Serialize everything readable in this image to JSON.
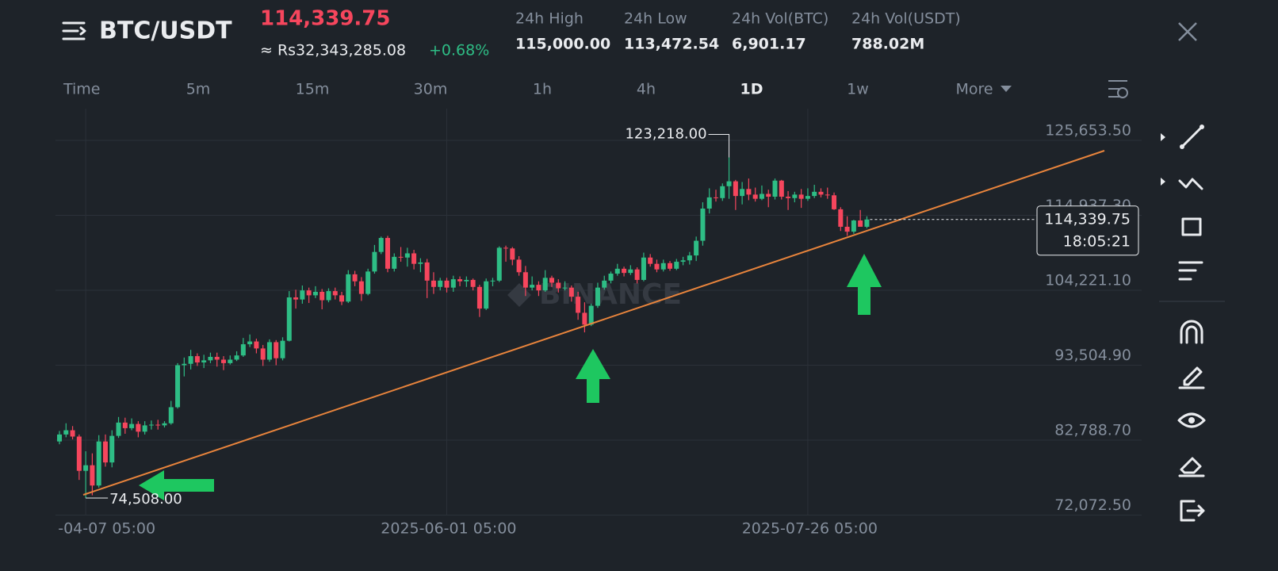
{
  "header": {
    "symbol": "BTC/USDT",
    "price": "114,339.75",
    "fiat": "≈ Rs32,343,285.08",
    "change": "+0.68%",
    "stats": [
      {
        "label": "24h High",
        "value": "115,000.00"
      },
      {
        "label": "24h Low",
        "value": "113,472.54"
      },
      {
        "label": "24h Vol(BTC)",
        "value": "6,901.17"
      },
      {
        "label": "24h Vol(USDT)",
        "value": "788.02M"
      }
    ]
  },
  "intervals": [
    "Time",
    "5m",
    "15m",
    "30m",
    "1h",
    "4h",
    "1D",
    "1w",
    "More"
  ],
  "active_interval": "1D",
  "chart_data": {
    "type": "candlestick",
    "watermark": "BINANCE",
    "up_color": "#2ebd85",
    "down_color": "#f6465d",
    "ylim": [
      72072.5,
      125653.5
    ],
    "yticks": [
      {
        "value": 72072.5,
        "label": "72,072.50"
      },
      {
        "value": 82788.7,
        "label": "82,788.70"
      },
      {
        "value": 93504.9,
        "label": "93,504.90"
      },
      {
        "value": 104221.1,
        "label": "104,221.10"
      },
      {
        "value": 114937.3,
        "label": "114,937.30"
      },
      {
        "value": 125653.5,
        "label": "125,653.50"
      }
    ],
    "xticks": [
      {
        "value": 4,
        "label": "-04-07 05:00"
      },
      {
        "value": 59,
        "label": "2025-06-01 05:00"
      },
      {
        "value": 114,
        "label": "2025-07-26 05:00"
      }
    ],
    "high_marker": {
      "index": 102,
      "value": 123218,
      "label": "123,218.00"
    },
    "low_marker": {
      "index": 4,
      "value": 74508,
      "label": "74,508.00"
    },
    "current_price": {
      "value": 114339.75,
      "label": "114,339.75",
      "countdown": "18:05:21"
    },
    "candles": [
      [
        82600,
        84100,
        82200,
        83600
      ],
      [
        83600,
        85200,
        83200,
        84200
      ],
      [
        84200,
        84800,
        82900,
        83300
      ],
      [
        83300,
        83600,
        77100,
        78400
      ],
      [
        78400,
        81200,
        74508,
        79200
      ],
      [
        79200,
        80900,
        74900,
        76300
      ],
      [
        76300,
        83500,
        76000,
        82600
      ],
      [
        82600,
        83600,
        79000,
        79600
      ],
      [
        79600,
        84200,
        78900,
        83400
      ],
      [
        83400,
        86100,
        83100,
        85300
      ],
      [
        85300,
        86000,
        83700,
        84500
      ],
      [
        84500,
        85900,
        84200,
        85100
      ],
      [
        85100,
        85500,
        83200,
        84000
      ],
      [
        84000,
        85500,
        83600,
        84900
      ],
      [
        84900,
        85600,
        84300,
        85000
      ],
      [
        85000,
        85700,
        84300,
        84900
      ],
      [
        84900,
        85500,
        84600,
        85200
      ],
      [
        85200,
        88400,
        85000,
        87500
      ],
      [
        87500,
        93800,
        87300,
        93500
      ],
      [
        93500,
        94600,
        91900,
        93700
      ],
      [
        93700,
        95700,
        92900,
        94800
      ],
      [
        94800,
        95200,
        93400,
        93900
      ],
      [
        93900,
        95000,
        93100,
        94200
      ],
      [
        94200,
        95300,
        93800,
        94700
      ],
      [
        94700,
        95300,
        93300,
        94300
      ],
      [
        94300,
        94800,
        92800,
        93800
      ],
      [
        93800,
        94900,
        93600,
        94300
      ],
      [
        94300,
        95500,
        94100,
        94900
      ],
      [
        94900,
        97400,
        94700,
        96500
      ],
      [
        96500,
        97900,
        96100,
        96900
      ],
      [
        96900,
        97300,
        95200,
        95900
      ],
      [
        95900,
        96400,
        93400,
        94300
      ],
      [
        94300,
        97200,
        94000,
        96800
      ],
      [
        96800,
        97100,
        93500,
        94500
      ],
      [
        94500,
        97500,
        94200,
        97000
      ],
      [
        97000,
        104100,
        96900,
        103200
      ],
      [
        103200,
        104300,
        101600,
        102900
      ],
      [
        102900,
        104900,
        102300,
        104200
      ],
      [
        104200,
        104600,
        102400,
        103500
      ],
      [
        103500,
        104800,
        103100,
        104000
      ],
      [
        104000,
        104400,
        101500,
        102800
      ],
      [
        102800,
        104500,
        102500,
        104100
      ],
      [
        104100,
        104600,
        102900,
        103500
      ],
      [
        103500,
        104000,
        102100,
        102600
      ],
      [
        102600,
        107100,
        102400,
        106500
      ],
      [
        106500,
        107000,
        104800,
        105500
      ],
      [
        105500,
        106100,
        102700,
        103700
      ],
      [
        103700,
        107300,
        103500,
        106900
      ],
      [
        106900,
        110700,
        106600,
        109700
      ],
      [
        109700,
        111900,
        109400,
        111700
      ],
      [
        111700,
        112000,
        106800,
        107300
      ],
      [
        107300,
        109500,
        106900,
        109000
      ],
      [
        109000,
        110400,
        108300,
        108900
      ],
      [
        108900,
        110300,
        107600,
        109500
      ],
      [
        109500,
        110000,
        107200,
        108000
      ],
      [
        108000,
        108800,
        106800,
        108200
      ],
      [
        108200,
        108700,
        103100,
        105600
      ],
      [
        105600,
        106800,
        103700,
        104700
      ],
      [
        104700,
        106000,
        104200,
        105600
      ],
      [
        105600,
        106000,
        103900,
        104600
      ],
      [
        104600,
        106300,
        104000,
        105800
      ],
      [
        105800,
        106200,
        104800,
        105500
      ],
      [
        105500,
        106200,
        104700,
        105700
      ],
      [
        105700,
        105900,
        104200,
        104700
      ],
      [
        104700,
        105000,
        100400,
        101600
      ],
      [
        101600,
        105900,
        101400,
        105500
      ],
      [
        105500,
        106000,
        104800,
        105600
      ],
      [
        105600,
        110500,
        105400,
        110300
      ],
      [
        110300,
        110600,
        108300,
        110200
      ],
      [
        110200,
        110400,
        107800,
        108600
      ],
      [
        108600,
        109100,
        106300,
        106800
      ],
      [
        106800,
        107700,
        103400,
        104600
      ],
      [
        104600,
        106200,
        104200,
        105000
      ],
      [
        105000,
        105500,
        103400,
        104200
      ],
      [
        104200,
        107100,
        104000,
        106000
      ],
      [
        106000,
        106300,
        104700,
        105300
      ],
      [
        105300,
        105800,
        103900,
        104500
      ],
      [
        104500,
        105500,
        104200,
        104600
      ],
      [
        104600,
        104900,
        102600,
        103300
      ],
      [
        103300,
        104000,
        100000,
        101000
      ],
      [
        101000,
        102500,
        98200,
        99300
      ],
      [
        99300,
        102300,
        99100,
        102000
      ],
      [
        102000,
        105300,
        101700,
        104600
      ],
      [
        104600,
        106300,
        104300,
        105600
      ],
      [
        105600,
        106900,
        105200,
        106600
      ],
      [
        106600,
        108000,
        106300,
        107300
      ],
      [
        107300,
        107600,
        106200,
        106700
      ],
      [
        106700,
        107800,
        106400,
        107200
      ],
      [
        107200,
        107500,
        105200,
        105700
      ],
      [
        105700,
        109600,
        105500,
        108900
      ],
      [
        108900,
        109400,
        107600,
        108000
      ],
      [
        108000,
        108600,
        106800,
        107200
      ],
      [
        107200,
        108600,
        106900,
        108100
      ],
      [
        108100,
        108400,
        107000,
        107300
      ],
      [
        107300,
        108700,
        107100,
        108300
      ],
      [
        108300,
        109000,
        107800,
        108500
      ],
      [
        108500,
        109700,
        107900,
        109200
      ],
      [
        109200,
        111900,
        108400,
        111300
      ],
      [
        111300,
        116800,
        110600,
        115900
      ],
      [
        115900,
        118800,
        115200,
        117500
      ],
      [
        117500,
        118600,
        116900,
        117400
      ],
      [
        117400,
        119500,
        117000,
        119100
      ],
      [
        119100,
        123218,
        117300,
        119800
      ],
      [
        119800,
        120000,
        115700,
        117700
      ],
      [
        117700,
        119700,
        116500,
        118700
      ],
      [
        118700,
        120200,
        117100,
        117900
      ],
      [
        117900,
        118900,
        116900,
        117300
      ],
      [
        117300,
        119200,
        117100,
        118000
      ],
      [
        118000,
        118600,
        116100,
        117600
      ],
      [
        117600,
        120200,
        117200,
        119900
      ],
      [
        119900,
        120000,
        117200,
        117600
      ],
      [
        117600,
        118400,
        115700,
        117400
      ],
      [
        117400,
        118300,
        116800,
        117900
      ],
      [
        117900,
        118700,
        116000,
        117300
      ],
      [
        117300,
        118800,
        117000,
        117700
      ],
      [
        117700,
        119300,
        117400,
        118300
      ],
      [
        118300,
        118800,
        117500,
        117900
      ],
      [
        117900,
        118900,
        117300,
        117800
      ],
      [
        117800,
        118200,
        115700,
        115800
      ],
      [
        115800,
        116100,
        112700,
        113300
      ],
      [
        113300,
        114800,
        112000,
        112600
      ],
      [
        112600,
        114300,
        112300,
        114200
      ],
      [
        114200,
        115700,
        113500,
        113300
      ],
      [
        113300,
        114800,
        113100,
        114339.75
      ]
    ]
  }
}
